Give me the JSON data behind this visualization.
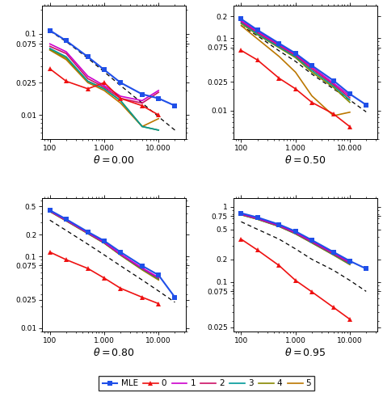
{
  "x_vals": [
    100,
    200,
    500,
    1000,
    2000,
    5000,
    10000,
    20000
  ],
  "panel_00": {
    "MLE": [
      0.11,
      0.082,
      0.052,
      0.036,
      0.025,
      0.018,
      0.016,
      0.013
    ],
    "0": [
      0.037,
      0.026,
      0.021,
      0.025,
      0.016,
      0.013,
      0.01,
      null
    ],
    "1": [
      0.075,
      0.06,
      0.03,
      0.023,
      0.017,
      0.015,
      0.02,
      null
    ],
    "2": [
      0.07,
      0.057,
      0.028,
      0.022,
      0.016,
      0.014,
      0.019,
      null
    ],
    "3": [
      0.066,
      0.052,
      0.026,
      0.021,
      0.015,
      0.0072,
      0.0065,
      null
    ],
    "4": [
      0.064,
      0.05,
      0.026,
      0.021,
      0.015,
      0.0072,
      0.0065,
      null
    ],
    "5": [
      0.063,
      0.048,
      0.025,
      0.02,
      0.014,
      0.0072,
      0.009,
      null
    ],
    "dashed": [
      0.108,
      0.08,
      0.05,
      0.034,
      0.023,
      0.014,
      0.0095,
      0.0065
    ],
    "ylim": [
      0.005,
      0.22
    ],
    "yticks": [
      0.01,
      0.025,
      0.075,
      0.1
    ]
  },
  "panel_05": {
    "MLE": [
      0.185,
      0.13,
      0.085,
      0.062,
      0.042,
      0.026,
      0.017,
      0.012
    ],
    "0": [
      0.068,
      0.05,
      0.028,
      0.02,
      0.013,
      0.009,
      0.006,
      null
    ],
    "1": [
      0.175,
      0.125,
      0.082,
      0.06,
      0.04,
      0.024,
      0.016,
      null
    ],
    "2": [
      0.17,
      0.12,
      0.079,
      0.058,
      0.038,
      0.023,
      0.015,
      null
    ],
    "3": [
      0.165,
      0.115,
      0.076,
      0.056,
      0.036,
      0.022,
      0.014,
      null
    ],
    "4": [
      0.16,
      0.112,
      0.074,
      0.054,
      0.034,
      0.021,
      0.013,
      null
    ],
    "5": [
      0.15,
      0.098,
      0.056,
      0.034,
      0.016,
      0.0085,
      0.0095,
      null
    ],
    "dashed": [
      0.15,
      0.108,
      0.067,
      0.048,
      0.032,
      0.02,
      0.014,
      0.0096
    ],
    "ylim": [
      0.004,
      0.28
    ],
    "yticks": [
      0.01,
      0.025,
      0.075,
      0.1,
      0.2
    ]
  },
  "panel_08": {
    "MLE": [
      0.44,
      0.33,
      0.22,
      0.165,
      0.115,
      0.074,
      0.055,
      0.027
    ],
    "0": [
      0.115,
      0.09,
      0.068,
      0.05,
      0.036,
      0.027,
      0.022,
      null
    ],
    "1": [
      0.43,
      0.32,
      0.214,
      0.158,
      0.108,
      0.069,
      0.051,
      null
    ],
    "2": [
      0.428,
      0.318,
      0.212,
      0.156,
      0.107,
      0.068,
      0.05,
      null
    ],
    "3": [
      0.426,
      0.316,
      0.21,
      0.155,
      0.106,
      0.067,
      0.049,
      null
    ],
    "4": [
      0.424,
      0.314,
      0.209,
      0.154,
      0.105,
      0.066,
      0.048,
      null
    ],
    "5": [
      0.422,
      0.312,
      0.208,
      0.153,
      0.104,
      0.065,
      0.047,
      null
    ],
    "dashed": [
      0.32,
      0.23,
      0.148,
      0.105,
      0.074,
      0.047,
      0.033,
      0.023
    ],
    "ylim": [
      0.009,
      0.65
    ],
    "yticks": [
      0.01,
      0.025,
      0.075,
      0.1,
      0.2,
      0.5
    ]
  },
  "panel_095": {
    "MLE": [
      0.82,
      0.72,
      0.58,
      0.47,
      0.36,
      0.25,
      0.19,
      0.15
    ],
    "0": [
      0.37,
      0.265,
      0.165,
      0.105,
      0.074,
      0.046,
      0.032,
      null
    ],
    "1": [
      0.8,
      0.7,
      0.565,
      0.455,
      0.348,
      0.243,
      0.183,
      null
    ],
    "2": [
      0.79,
      0.69,
      0.555,
      0.445,
      0.34,
      0.236,
      0.178,
      null
    ],
    "3": [
      0.785,
      0.685,
      0.55,
      0.44,
      0.335,
      0.232,
      0.174,
      null
    ],
    "4": [
      0.782,
      0.682,
      0.548,
      0.438,
      0.333,
      0.23,
      0.172,
      null
    ],
    "5": [
      0.78,
      0.68,
      0.545,
      0.435,
      0.33,
      0.228,
      0.17,
      null
    ],
    "dashed": [
      0.63,
      0.5,
      0.37,
      0.275,
      0.2,
      0.143,
      0.105,
      0.075
    ],
    "ylim": [
      0.022,
      1.3
    ],
    "yticks": [
      0.025,
      0.075,
      0.1,
      0.2,
      0.5,
      0.75,
      1.0
    ]
  },
  "MLE_color": "#1f4fe8",
  "series_colors": {
    "0": "#ee1111",
    "1": "#cc00cc",
    "2": "#cc1166",
    "3": "#009999",
    "4": "#888800",
    "5": "#bb7700"
  },
  "theta_values": [
    "0.00",
    "0.50",
    "0.80",
    "0.95"
  ],
  "legend_entries": [
    "MLE",
    "0",
    "1",
    "2",
    "3",
    "4",
    "5"
  ]
}
